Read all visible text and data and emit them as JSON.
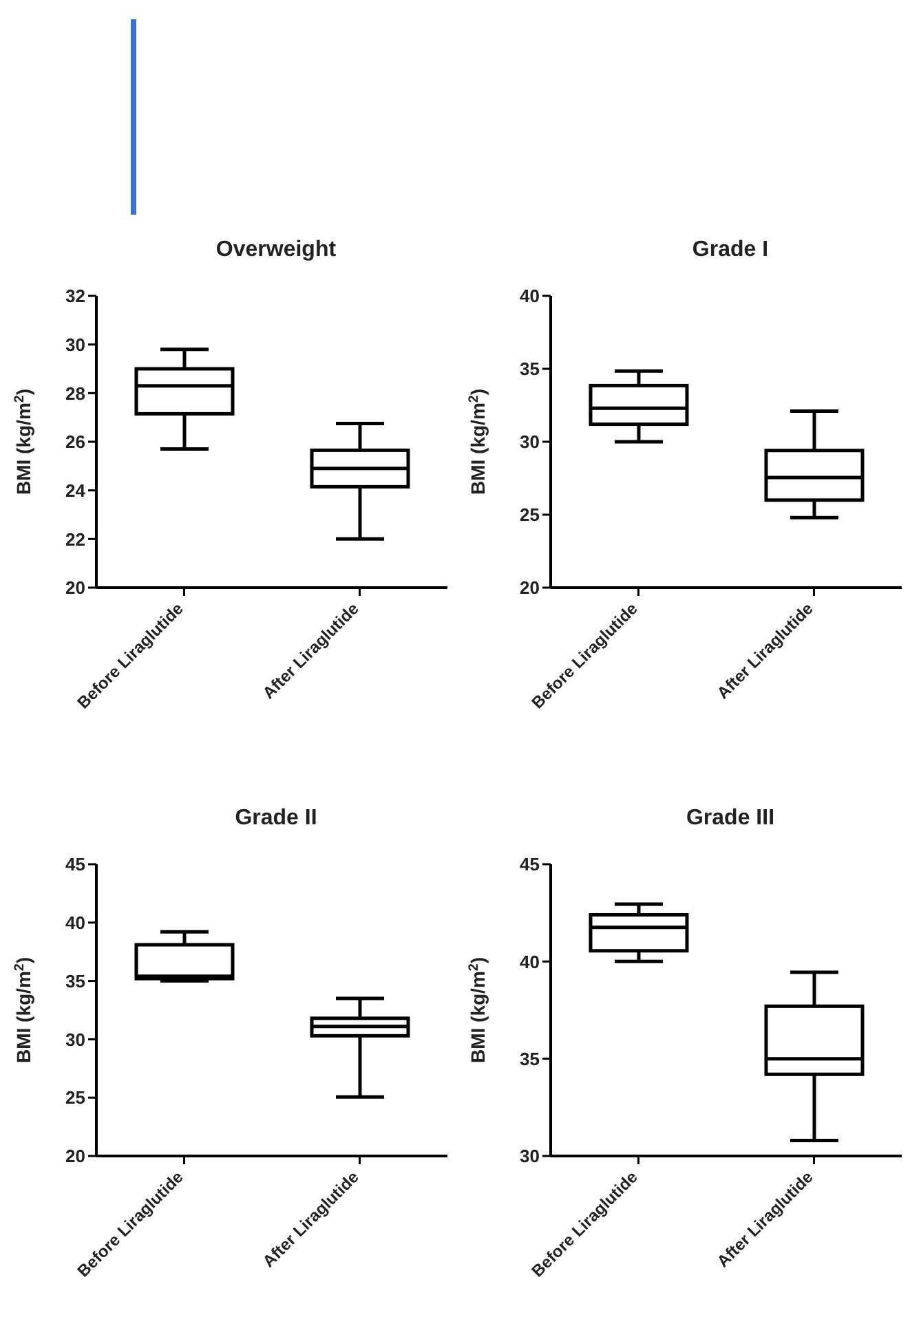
{
  "chart_data": [
    {
      "type": "box",
      "title": "Overweight",
      "ylabel": "BMI (kg/m$^{2}$)",
      "categories": [
        "Before Liraglutide",
        "After Liraglutide"
      ],
      "ylim": [
        20,
        32
      ],
      "yticks": [
        20,
        22,
        24,
        26,
        28,
        30,
        32
      ],
      "color": "#000000",
      "boxes": [
        {
          "low": 25.7,
          "q1": 27.15,
          "median": 28.3,
          "q3": 29.0,
          "high": 29.8
        },
        {
          "low": 22.0,
          "q1": 24.15,
          "median": 24.9,
          "q3": 25.65,
          "high": 26.75
        }
      ]
    },
    {
      "type": "box",
      "title": "Grade I",
      "ylabel": "BMI (kg/m$^{2}$)",
      "categories": [
        "Before Liraglutide",
        "After Liraglutide"
      ],
      "ylim": [
        20,
        40
      ],
      "yticks": [
        20,
        25,
        30,
        35,
        40
      ],
      "color": "#000000",
      "boxes": [
        {
          "low": 30.0,
          "q1": 31.2,
          "median": 32.3,
          "q3": 33.85,
          "high": 34.85
        },
        {
          "low": 24.8,
          "q1": 26.0,
          "median": 27.55,
          "q3": 29.4,
          "high": 32.1
        }
      ]
    },
    {
      "type": "box",
      "title": "Grade II",
      "ylabel": "BMI (kg/m$^{2}$)",
      "categories": [
        "Before Liraglutide",
        "After Liraglutide"
      ],
      "ylim": [
        20,
        45
      ],
      "yticks": [
        20,
        25,
        30,
        35,
        40,
        45
      ],
      "color": "#000000",
      "boxes": [
        {
          "low": 35.0,
          "q1": 35.2,
          "median": 35.4,
          "q3": 38.1,
          "high": 39.2
        },
        {
          "low": 25.05,
          "q1": 30.3,
          "median": 31.1,
          "q3": 31.8,
          "high": 33.5
        }
      ]
    },
    {
      "type": "box",
      "title": "Grade III",
      "ylabel": "BMI (kg/m$^{2}$)",
      "categories": [
        "Before Liraglutide",
        "After Liraglutide"
      ],
      "ylim": [
        30,
        45
      ],
      "yticks": [
        30,
        35,
        40,
        45
      ],
      "color": "#000000",
      "boxes": [
        {
          "low": 40.0,
          "q1": 40.55,
          "median": 41.75,
          "q3": 42.4,
          "high": 42.95
        },
        {
          "low": 30.8,
          "q1": 34.2,
          "median": 35.0,
          "q3": 37.7,
          "high": 39.45
        }
      ]
    }
  ]
}
